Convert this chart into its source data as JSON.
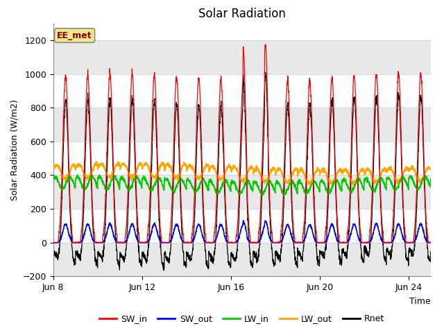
{
  "title": "Solar Radiation",
  "ylabel": "Solar Radiation (W/m2)",
  "xlabel": "Time",
  "annotation_text": "EE_met",
  "ylim": [
    -200,
    1300
  ],
  "yticks": [
    -200,
    0,
    200,
    400,
    600,
    800,
    1000,
    1200
  ],
  "legend_labels": [
    "SW_in",
    "SW_out",
    "LW_in",
    "LW_out",
    "Rnet"
  ],
  "colors": {
    "SW_in": "#ff0000",
    "SW_out": "#0000ff",
    "LW_in": "#00cc00",
    "LW_out": "#ffa500",
    "Rnet": "#000000"
  },
  "xtick_labels": [
    "Jun 8",
    "Jun 12",
    "Jun 16",
    "Jun 20",
    "Jun 24"
  ],
  "xtick_positions": [
    0,
    4,
    8,
    12,
    16
  ],
  "n_days": 17,
  "pts_per_day": 144,
  "background_color": "#ffffff",
  "band_color": "#e8e8e8",
  "figsize": [
    6.4,
    4.8
  ],
  "dpi": 100
}
